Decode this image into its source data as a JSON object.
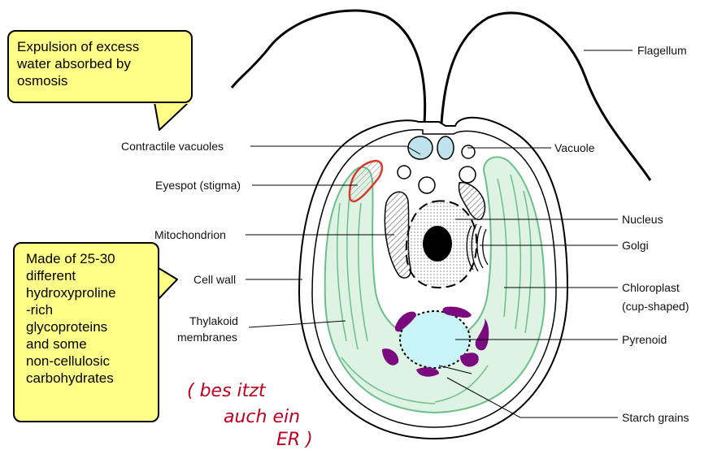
{
  "callouts": {
    "top_lines": [
      "Expulsion of excess",
      "water absorbed by",
      "osmosis"
    ],
    "left_lines": [
      "Made of 25-30",
      "different",
      "hydroxyproline",
      "-rich",
      "glycoproteins",
      "and some",
      "non-cellulosic",
      "carbohydrates"
    ]
  },
  "labels": {
    "flagellum": "Flagellum",
    "contractile_vacuoles": "Contractile vacuoles",
    "vacuole": "Vacuole",
    "eyespot": "Eyespot (stigma)",
    "nucleus": "Nucleus",
    "mitochondrion": "Mitochondrion",
    "golgi": "Golgi",
    "cell_wall": "Cell wall",
    "chloroplast_1": "Chloroplast",
    "chloroplast_2": "(cup-shaped)",
    "thylakoid_1": "Thylakoid",
    "thylakoid_2": "membranes",
    "pyrenoid": "Pyrenoid",
    "starch_grains": "Starch grains"
  },
  "handwriting": [
    "( bes itzt",
    "auch ein",
    "ER )"
  ],
  "colors": {
    "callout_fill": "#ffff88",
    "chloroplast": "#dff3e4",
    "chloroplast_stroke": "#6bbf8a",
    "pyrenoid": "#c8f4f8",
    "starch": "#7a0a7e",
    "eyespot": "#d93a2a",
    "vacuole_fill": "#bfe3ec",
    "handwriting": "#c00020"
  }
}
